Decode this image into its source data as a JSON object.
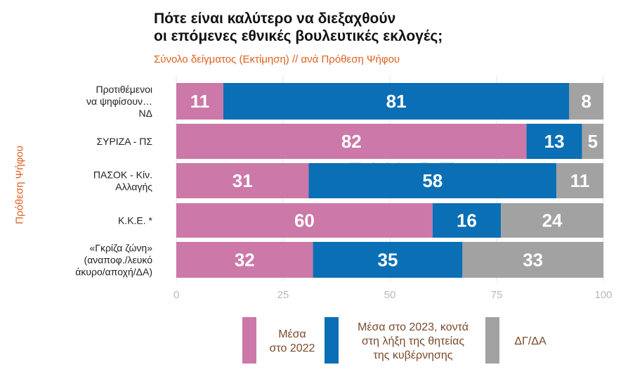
{
  "chart_data": {
    "type": "bar",
    "orientation": "horizontal",
    "stacked": true,
    "title_lines": [
      "Πότε είναι καλύτερο να διεξαχθούν",
      "οι επόμενες εθνικές βουλευτικές εκλογές;"
    ],
    "subtitle": "Σύνολο δείγματος   (Εκτίμηση) // ανά Πρόθεση Ψήφου",
    "ylabel": "Πρόθεση Ψήφου",
    "watermark": "PULSE",
    "categories": [
      [
        "Προτιθέμενοι",
        "να ψηφίσουν…",
        "ΝΔ"
      ],
      [
        "ΣΥΡΙΖΑ - ΠΣ"
      ],
      [
        "ΠΑΣΟΚ - Κίν.",
        "Αλλαγής"
      ],
      [
        "Κ.Κ.Ε. *"
      ],
      [
        "«Γκρίζα ζώνη»",
        "(αναποφ./λευκό",
        "άκυρο/αποχή/ΔΑ)"
      ]
    ],
    "series": [
      {
        "name": "Μέσα στο 2022",
        "legend_lines": [
          "Μέσα",
          "στο 2022"
        ],
        "color": "#cc78a8",
        "values": [
          11,
          82,
          31,
          60,
          32
        ]
      },
      {
        "name": "Μέσα στο 2023, κοντά στη λήξη της θητείας της κυβέρνησης",
        "legend_lines": [
          "Μέσα στο 2023, κοντά",
          "στη λήξη της θητείας",
          "της κυβέρνησης"
        ],
        "color": "#0a6fb5",
        "values": [
          81,
          13,
          58,
          16,
          35
        ]
      },
      {
        "name": "ΔΓ/ΔΑ",
        "legend_lines": [
          "ΔΓ/ΔΑ"
        ],
        "color": "#a2a2a2",
        "values": [
          8,
          5,
          11,
          24,
          33
        ]
      }
    ],
    "xlim": [
      0,
      100
    ],
    "xticks": [
      0,
      25,
      50,
      75,
      100
    ],
    "grid": true,
    "legend_position": "bottom"
  }
}
